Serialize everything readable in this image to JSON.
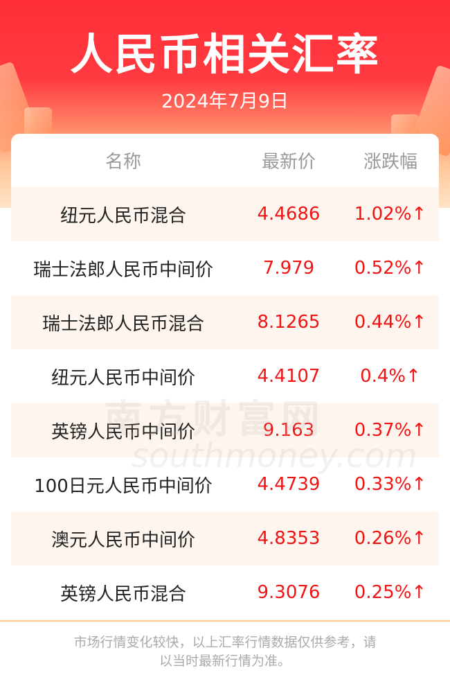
{
  "header": {
    "title": "人民币相关汇率",
    "date": "2024年7月9日"
  },
  "table": {
    "columns": [
      "名称",
      "最新价",
      "涨跌幅"
    ],
    "rows": [
      {
        "name": "纽元人民币混合",
        "price": "4.4686",
        "change": "1.02%↑"
      },
      {
        "name": "瑞士法郎人民币中间价",
        "price": "7.979",
        "change": "0.52%↑"
      },
      {
        "name": "瑞士法郎人民币混合",
        "price": "8.1265",
        "change": "0.44%↑"
      },
      {
        "name": "纽元人民币中间价",
        "price": "4.4107",
        "change": "0.4%↑"
      },
      {
        "name": "英镑人民币中间价",
        "price": "9.163",
        "change": "0.37%↑"
      },
      {
        "name": "100日元人民币中间价",
        "price": "4.4739",
        "change": "0.33%↑"
      },
      {
        "name": "澳元人民币中间价",
        "price": "4.8353",
        "change": "0.26%↑"
      },
      {
        "name": "英镑人民币混合",
        "price": "9.3076",
        "change": "0.25%↑"
      }
    ]
  },
  "watermark": {
    "cn": "南方财富网",
    "en": "southmoney.com"
  },
  "footer": {
    "note_line1": "市场行情变化较快，以上汇率行情数据仅供参考，请",
    "note_line2": "以当时最新行情为准。"
  },
  "colors": {
    "brand_red": "#ff2e38",
    "up": "#f01414",
    "row_shade": "#fdf5ee"
  }
}
